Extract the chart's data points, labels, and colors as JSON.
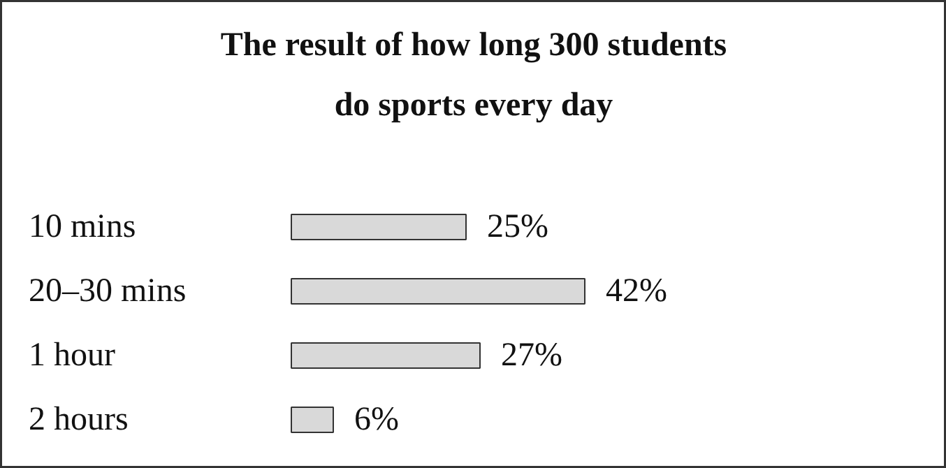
{
  "chart_data": {
    "type": "bar",
    "orientation": "horizontal",
    "title": "The result of how long 300 students do sports every day",
    "categories": [
      "10 mins",
      "20–30 mins",
      "1 hour",
      "2 hours"
    ],
    "values": [
      25,
      42,
      27,
      6
    ],
    "value_labels": [
      "25%",
      "42%",
      "27%",
      "6%"
    ],
    "color": "#d9d9d9"
  }
}
